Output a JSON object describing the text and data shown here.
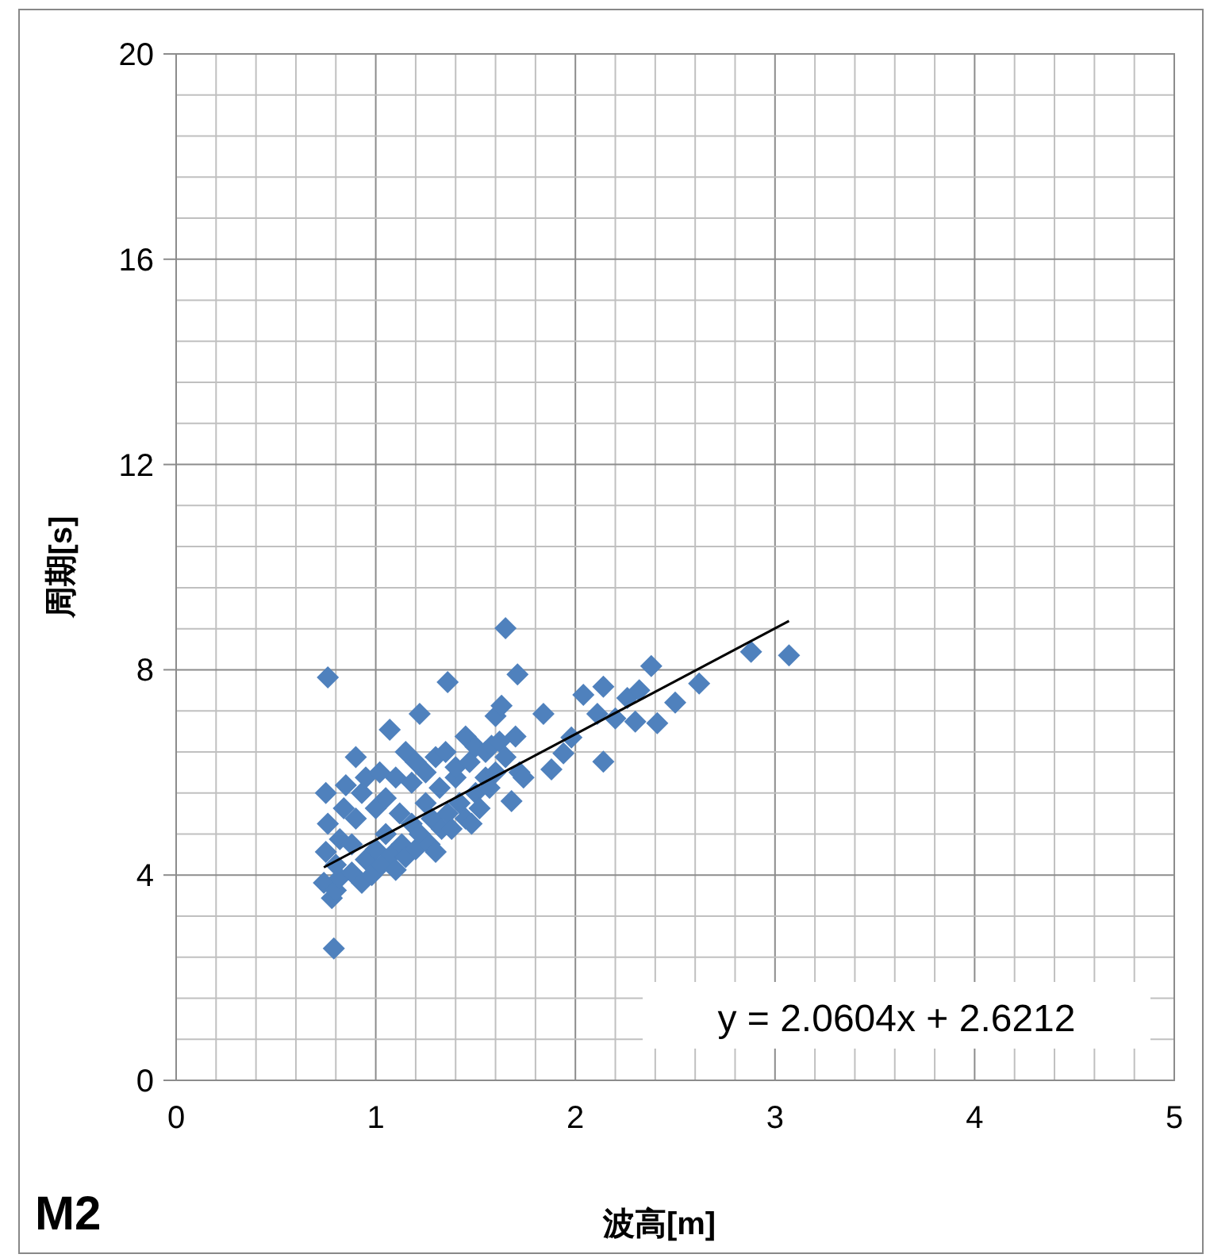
{
  "chart_data": {
    "type": "scatter",
    "xlabel": "波高[m]",
    "ylabel": "周期[s]",
    "annotations": [
      "M2",
      "y = 2.0604x + 2.6212"
    ],
    "xlim": [
      0,
      5
    ],
    "ylim": [
      0,
      20
    ],
    "grid": true,
    "marker": "diamond",
    "xticks": [
      0,
      {
        "value": 0.2,
        "label": null
      },
      {
        "value": 0.4,
        "label": null
      },
      {
        "value": 0.6,
        "label": null
      },
      {
        "value": 0.8,
        "label": null
      },
      1,
      {
        "value": 1.2,
        "label": null
      },
      {
        "value": 1.4,
        "label": null
      },
      {
        "value": 1.6,
        "label": null
      },
      {
        "value": 1.8,
        "label": null
      },
      2,
      {
        "value": 2.2,
        "label": null
      },
      {
        "value": 2.4,
        "label": null
      },
      {
        "value": 2.6,
        "label": null
      },
      {
        "value": 2.8,
        "label": null
      },
      3,
      {
        "value": 3.2,
        "label": null
      },
      {
        "value": 3.4,
        "label": null
      },
      {
        "value": 3.6,
        "label": null
      },
      {
        "value": 3.8,
        "label": null
      },
      4,
      {
        "value": 4.2,
        "label": null
      },
      {
        "value": 4.4,
        "label": null
      },
      {
        "value": 4.6,
        "label": null
      },
      {
        "value": 4.8,
        "label": null
      },
      5
    ],
    "yticks": [
      0,
      {
        "value": 0.8,
        "label": null
      },
      {
        "value": 1.6,
        "label": null
      },
      {
        "value": 2.4,
        "label": null
      },
      {
        "value": 3.2,
        "label": null
      },
      4,
      {
        "value": 4.8,
        "label": null
      },
      {
        "value": 5.6,
        "label": null
      },
      {
        "value": 6.4,
        "label": null
      },
      {
        "value": 7.2,
        "label": null
      },
      8,
      {
        "value": 8.8,
        "label": null
      },
      {
        "value": 9.6,
        "label": null
      },
      {
        "value": 10.4,
        "label": null
      },
      {
        "value": 11.2,
        "label": null
      },
      12,
      {
        "value": 12.8,
        "label": null
      },
      {
        "value": 13.6,
        "label": null
      },
      {
        "value": 14.4,
        "label": null
      },
      {
        "value": 15.2,
        "label": null
      },
      16,
      {
        "value": 16.8,
        "label": null
      },
      {
        "value": 17.6,
        "label": null
      },
      {
        "value": 18.4,
        "label": null
      },
      {
        "value": 19.2,
        "label": null
      },
      20
    ],
    "series": [
      {
        "color": "#4f81bd",
        "x": [
          0.74,
          0.75,
          0.76,
          0.75,
          0.76,
          0.79,
          0.78,
          0.8,
          0.82,
          0.8,
          0.82,
          0.84,
          0.85,
          0.88,
          0.88,
          0.9,
          0.9,
          0.93,
          0.93,
          0.95,
          0.95,
          0.98,
          1.0,
          1.0,
          1.02,
          1.03,
          1.05,
          1.05,
          1.07,
          1.08,
          1.1,
          1.1,
          1.12,
          1.13,
          1.15,
          1.15,
          1.18,
          1.18,
          1.2,
          1.2,
          1.22,
          1.22,
          1.25,
          1.25,
          1.27,
          1.28,
          1.3,
          1.3,
          1.32,
          1.33,
          1.35,
          1.36,
          1.36,
          1.38,
          1.4,
          1.4,
          1.42,
          1.45,
          1.45,
          1.47,
          1.48,
          1.5,
          1.5,
          1.52,
          1.55,
          1.55,
          1.57,
          1.58,
          1.6,
          1.6,
          1.62,
          1.63,
          1.65,
          1.65,
          1.68,
          1.7,
          1.71,
          1.72,
          1.74,
          1.84,
          1.88,
          1.94,
          1.98,
          2.04,
          2.11,
          2.14,
          2.14,
          2.2,
          2.26,
          2.3,
          2.32,
          2.38,
          2.41,
          2.5,
          2.62,
          2.88,
          3.07
        ],
        "values": [
          3.85,
          4.45,
          5.0,
          5.6,
          7.85,
          2.57,
          3.55,
          3.7,
          3.95,
          4.2,
          4.7,
          5.3,
          5.75,
          4.05,
          4.6,
          5.1,
          6.3,
          3.85,
          5.6,
          4.3,
          5.9,
          4.0,
          4.5,
          5.3,
          6.0,
          4.2,
          4.8,
          5.5,
          6.83,
          4.4,
          5.9,
          4.1,
          5.2,
          4.6,
          6.4,
          4.35,
          5.0,
          5.8,
          4.5,
          6.2,
          7.14,
          4.8,
          5.4,
          6.0,
          4.6,
          5.1,
          6.3,
          4.45,
          5.7,
          4.9,
          6.4,
          7.76,
          5.2,
          4.9,
          5.9,
          6.1,
          5.4,
          6.7,
          5.1,
          6.2,
          5.0,
          5.6,
          6.5,
          5.3,
          5.9,
          6.4,
          5.7,
          6.52,
          7.1,
          6.0,
          6.6,
          7.3,
          8.81,
          6.3,
          5.44,
          6.7,
          7.91,
          6.0,
          5.9,
          7.14,
          6.06,
          6.37,
          6.68,
          7.51,
          7.14,
          7.67,
          6.21,
          7.05,
          7.45,
          6.99,
          7.6,
          8.07,
          6.96,
          7.36,
          7.73,
          8.35,
          8.28
        ]
      },
      {
        "type": "line",
        "color": "#000000",
        "marker": "none",
        "x": [
          0.74,
          3.07
        ],
        "values": [
          4.15,
          8.95
        ]
      }
    ]
  }
}
